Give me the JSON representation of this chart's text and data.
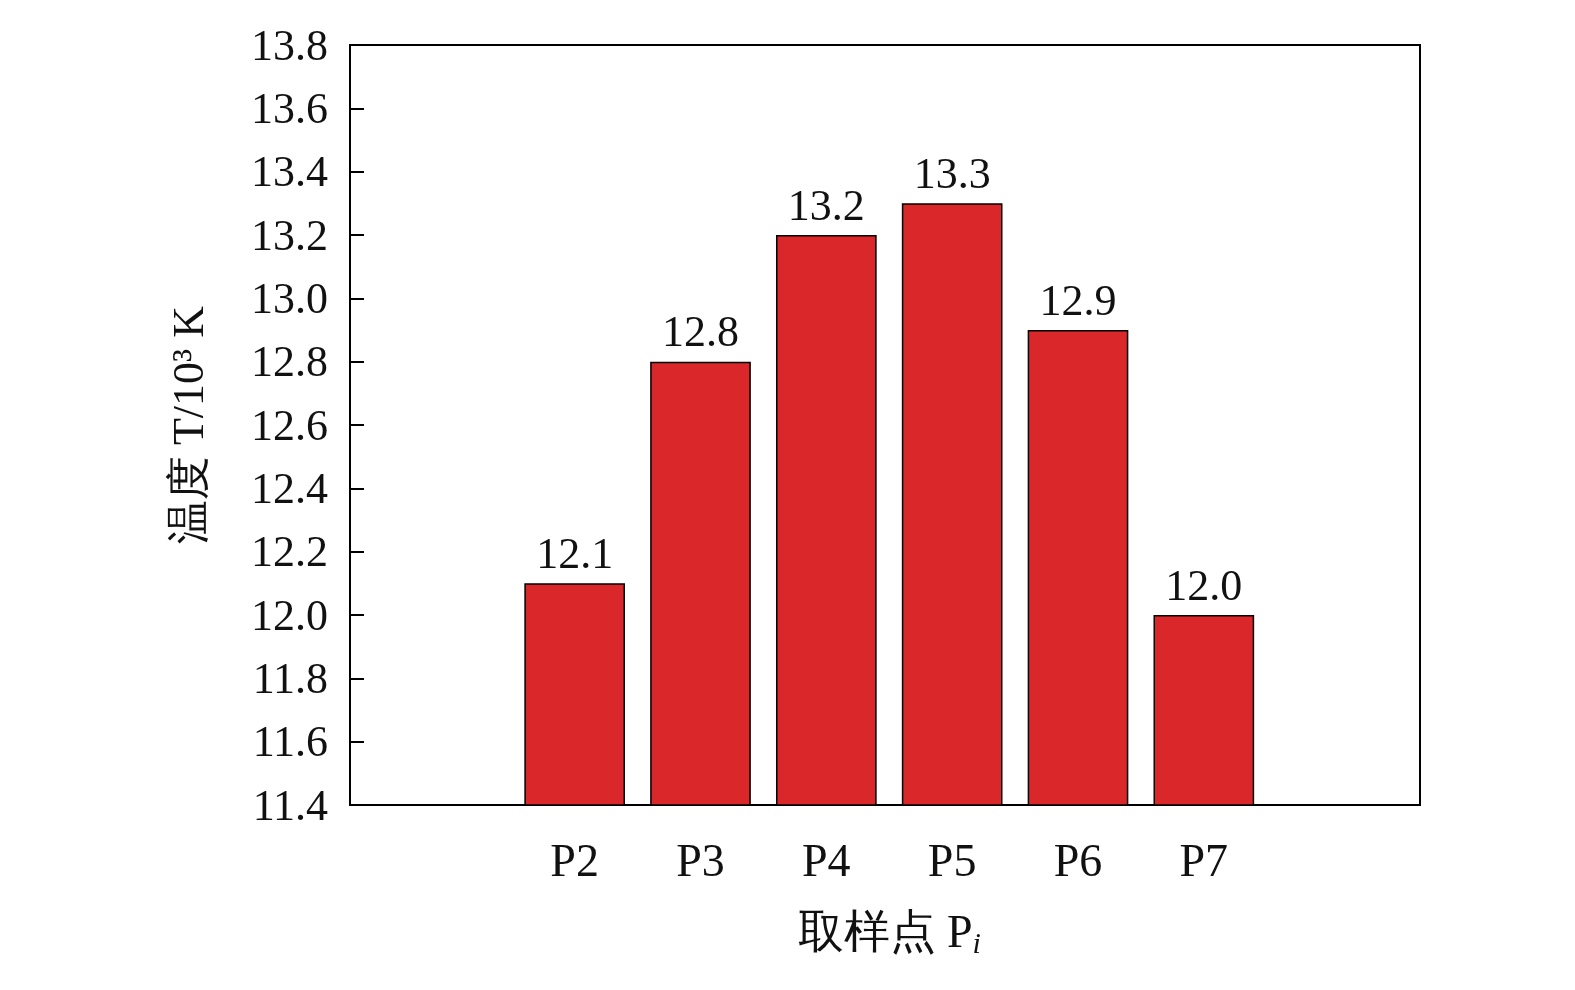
{
  "chart_data": {
    "type": "bar",
    "xlabel": "取样点 P$_{i}$",
    "ylabel": "温度 T/10³ K",
    "categories": [
      "P2",
      "P3",
      "P4",
      "P5",
      "P6",
      "P7"
    ],
    "values": [
      12.1,
      12.8,
      13.2,
      13.3,
      12.9,
      12.0
    ],
    "value_labels": [
      "12.1",
      "12.8",
      "13.2",
      "13.3",
      "12.9",
      "12.0"
    ],
    "color": "#d9272a",
    "ylim": [
      11.4,
      13.8
    ],
    "yticks": [
      {
        "value": 11.4,
        "label": "11.4"
      },
      {
        "value": 11.6,
        "label": "11.6"
      },
      {
        "value": 11.8,
        "label": "11.8"
      },
      {
        "value": 12.0,
        "label": "12.0"
      },
      {
        "value": 12.2,
        "label": "12.2"
      },
      {
        "value": 12.4,
        "label": "12.4"
      },
      {
        "value": 12.6,
        "label": "12.6"
      },
      {
        "value": 12.8,
        "label": "12.8"
      },
      {
        "value": 13.0,
        "label": "13.0"
      },
      {
        "value": 13.2,
        "label": "13.2"
      },
      {
        "value": 13.4,
        "label": "13.4"
      },
      {
        "value": 13.6,
        "label": "13.6"
      },
      {
        "value": 13.8,
        "label": "13.8"
      }
    ],
    "grid": false
  }
}
